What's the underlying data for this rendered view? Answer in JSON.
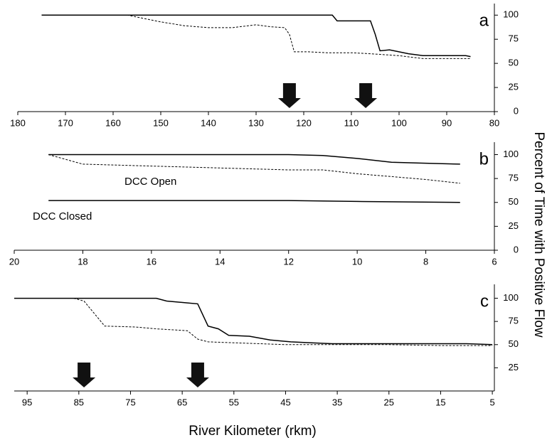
{
  "chart_data": [
    {
      "type": "line",
      "panel_label": "a",
      "xlim": [
        180,
        80
      ],
      "xticks": [
        180,
        170,
        160,
        150,
        140,
        130,
        120,
        110,
        100,
        90,
        80
      ],
      "ylim": [
        0,
        112
      ],
      "yticks": [
        0,
        25,
        50,
        75,
        100
      ],
      "arrows": [
        123,
        107
      ],
      "series": [
        {
          "color": "#000000",
          "style": "solid",
          "x": [
            175,
            114,
            113,
            106,
            105,
            104,
            102,
            98,
            95,
            86,
            85
          ],
          "values": [
            100,
            100,
            94,
            94,
            80,
            63,
            64,
            60,
            58,
            58,
            57
          ]
        },
        {
          "color": "#000000",
          "style": "dashed",
          "x": [
            175,
            157,
            150,
            145,
            140,
            135,
            130,
            127,
            124,
            123,
            122,
            119,
            115,
            110,
            106,
            100,
            95,
            85
          ],
          "values": [
            100,
            100,
            93,
            89,
            87,
            87,
            90,
            88,
            87,
            80,
            62,
            62,
            61,
            61,
            60,
            58,
            55,
            55
          ]
        }
      ]
    },
    {
      "type": "line",
      "panel_label": "b",
      "xlim": [
        20,
        6
      ],
      "xticks": [
        20,
        18,
        16,
        14,
        12,
        10,
        8,
        6
      ],
      "ylim": [
        0,
        113
      ],
      "yticks": [
        0,
        25,
        50,
        75,
        100
      ],
      "annotations": [
        "DCC Open",
        "DCC Closed"
      ],
      "series": [
        {
          "color": "#000000",
          "style": "solid",
          "x": [
            19,
            12,
            11,
            10,
            9,
            8,
            7
          ],
          "values": [
            100,
            100,
            99,
            96,
            92,
            91,
            90
          ]
        },
        {
          "color": "#000000",
          "style": "dashed",
          "x": [
            19,
            18,
            16,
            14,
            12,
            11,
            10,
            9,
            8,
            7
          ],
          "values": [
            100,
            90,
            88,
            86,
            84,
            84,
            80,
            77,
            74,
            70
          ]
        },
        {
          "color": "#000000",
          "style": "solid",
          "x": [
            19,
            12,
            10,
            7
          ],
          "values": [
            52,
            52,
            51,
            50
          ]
        }
      ]
    },
    {
      "type": "line",
      "panel_label": "c",
      "xlim": [
        97.5,
        4.6
      ],
      "xticks": [
        95,
        85,
        75,
        65,
        55,
        45,
        35,
        25,
        15,
        5
      ],
      "ylim": [
        0,
        115
      ],
      "yticks": [
        25,
        50,
        75,
        100
      ],
      "arrows": [
        84,
        62
      ],
      "x_label": "River Kilometer (rkm)",
      "y_label": "Percent of Time with Positive Flow",
      "series": [
        {
          "color": "#000000",
          "style": "solid",
          "x": [
            97.5,
            70,
            68,
            64,
            62,
            60,
            58,
            56,
            52,
            48,
            44,
            40,
            36,
            30,
            10,
            5
          ],
          "values": [
            100,
            100,
            97,
            95,
            94,
            70,
            67,
            60,
            59,
            55,
            53,
            52,
            51,
            51,
            51,
            50
          ]
        },
        {
          "color": "#000000",
          "style": "dashed",
          "x": [
            86,
            84,
            80,
            74,
            70,
            64,
            62,
            60,
            55,
            45,
            35,
            25,
            15,
            5
          ],
          "values": [
            100,
            97,
            70,
            69,
            67,
            65,
            56,
            53,
            52,
            50,
            50,
            50,
            49,
            49
          ]
        }
      ]
    }
  ]
}
